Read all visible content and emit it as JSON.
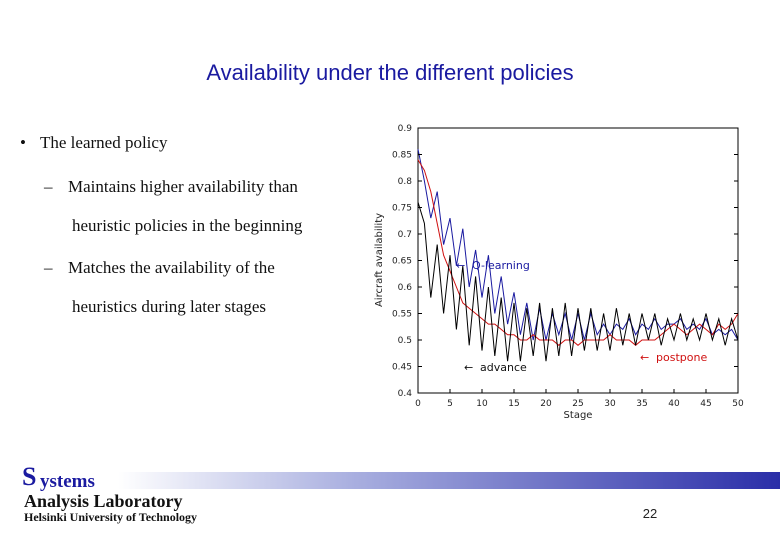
{
  "slide": {
    "title": "Availability under the different policies",
    "bullet": "The learned policy",
    "sub1_line1": "Maintains higher availability than",
    "sub1_line2": "heuristic policies in the beginning",
    "sub2_line1": "Matches the availability of the",
    "sub2_line2": "heuristics during later stages"
  },
  "footer": {
    "logo_initial": "S",
    "logo_rest": "ystems",
    "line2": "Analysis Laboratory",
    "line3": "Helsinki University of Technology",
    "page_number": "22"
  },
  "colors": {
    "title": "#1a1aa0",
    "q_learning": "#1a1aa0",
    "postpone": "#d01010",
    "advance": "#000000"
  },
  "chart_data": {
    "type": "line",
    "xlabel": "Stage",
    "ylabel": "Aircraft availability",
    "xlim": [
      0,
      50
    ],
    "ylim": [
      0.4,
      0.9
    ],
    "xticks": [
      "0",
      "5",
      "10",
      "15",
      "20",
      "25",
      "30",
      "35",
      "40",
      "45",
      "50"
    ],
    "yticks": [
      "0.4",
      "0.45",
      "0.5",
      "0.55",
      "0.6",
      "0.65",
      "0.7",
      "0.75",
      "0.8",
      "0.85",
      "0.9"
    ],
    "annotations": [
      "Q-learning",
      "postpone",
      "advance"
    ],
    "series": [
      {
        "name": "Q-learning",
        "color": "#1a1aa0",
        "values": [
          0.86,
          0.8,
          0.73,
          0.78,
          0.68,
          0.73,
          0.64,
          0.71,
          0.6,
          0.67,
          0.58,
          0.66,
          0.55,
          0.62,
          0.53,
          0.59,
          0.51,
          0.57,
          0.5,
          0.56,
          0.5,
          0.55,
          0.51,
          0.55,
          0.5,
          0.55,
          0.5,
          0.55,
          0.51,
          0.53,
          0.51,
          0.53,
          0.52,
          0.54,
          0.51,
          0.53,
          0.52,
          0.54,
          0.52,
          0.53,
          0.53,
          0.54,
          0.52,
          0.53,
          0.52,
          0.54,
          0.51,
          0.52,
          0.51,
          0.52,
          0.5
        ]
      },
      {
        "name": "postpone",
        "color": "#d01010",
        "values": [
          0.84,
          0.82,
          0.78,
          0.72,
          0.66,
          0.63,
          0.6,
          0.57,
          0.56,
          0.55,
          0.54,
          0.53,
          0.53,
          0.52,
          0.51,
          0.51,
          0.5,
          0.5,
          0.51,
          0.5,
          0.5,
          0.5,
          0.49,
          0.5,
          0.5,
          0.49,
          0.5,
          0.5,
          0.5,
          0.5,
          0.51,
          0.5,
          0.5,
          0.5,
          0.49,
          0.5,
          0.5,
          0.5,
          0.51,
          0.52,
          0.53,
          0.52,
          0.51,
          0.52,
          0.53,
          0.52,
          0.51,
          0.53,
          0.52,
          0.53,
          0.55
        ]
      },
      {
        "name": "advance",
        "color": "#000000",
        "values": [
          0.76,
          0.72,
          0.58,
          0.68,
          0.55,
          0.66,
          0.52,
          0.64,
          0.49,
          0.62,
          0.48,
          0.6,
          0.47,
          0.58,
          0.46,
          0.57,
          0.46,
          0.56,
          0.47,
          0.57,
          0.46,
          0.56,
          0.47,
          0.57,
          0.47,
          0.56,
          0.48,
          0.56,
          0.48,
          0.55,
          0.48,
          0.56,
          0.49,
          0.55,
          0.49,
          0.55,
          0.5,
          0.55,
          0.49,
          0.54,
          0.5,
          0.55,
          0.5,
          0.54,
          0.5,
          0.55,
          0.5,
          0.54,
          0.49,
          0.54,
          0.5
        ]
      }
    ]
  }
}
